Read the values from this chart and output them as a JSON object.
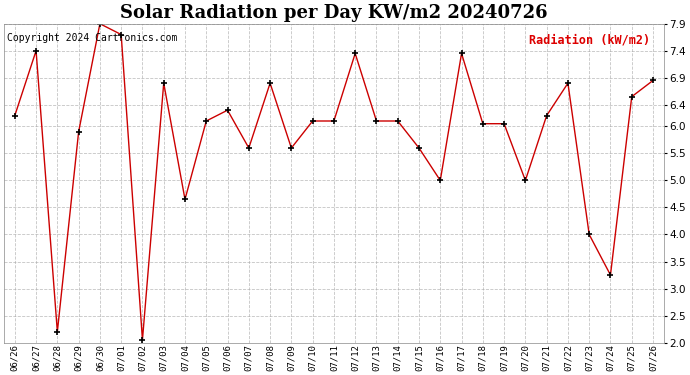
{
  "title": "Solar Radiation per Day KW/m2 20240726",
  "legend_label": "Radiation (kW/m2)",
  "copyright_text": "Copyright 2024 Cartronics.com",
  "dates": [
    "06/26",
    "06/27",
    "06/28",
    "06/29",
    "06/30",
    "07/01",
    "07/02",
    "07/03",
    "07/04",
    "07/05",
    "07/06",
    "07/07",
    "07/08",
    "07/09",
    "07/10",
    "07/11",
    "07/12",
    "07/13",
    "07/14",
    "07/15",
    "07/16",
    "07/17",
    "07/18",
    "07/19",
    "07/20",
    "07/21",
    "07/22",
    "07/23",
    "07/24",
    "07/25",
    "07/26"
  ],
  "values": [
    6.2,
    7.4,
    2.2,
    5.9,
    7.9,
    7.7,
    2.05,
    6.8,
    4.65,
    6.1,
    6.3,
    5.6,
    6.8,
    5.6,
    6.1,
    6.1,
    7.35,
    6.1,
    6.1,
    5.6,
    5.0,
    7.35,
    6.05,
    6.05,
    5.0,
    6.2,
    6.8,
    4.0,
    3.25,
    6.55,
    6.85
  ],
  "ylim": [
    2.0,
    7.9
  ],
  "yticks": [
    2.0,
    2.5,
    3.0,
    3.5,
    4.0,
    4.5,
    5.0,
    5.5,
    6.0,
    6.4,
    6.9,
    7.4,
    7.9
  ],
  "line_color": "#cc0000",
  "marker_color": "#000000",
  "background_color": "#ffffff",
  "grid_color": "#aaaaaa",
  "title_fontsize": 13,
  "legend_color": "#dd0000",
  "copyright_color": "#000000",
  "copyright_fontsize": 7,
  "tick_fontsize": 7.5,
  "xtick_fontsize": 6.5
}
